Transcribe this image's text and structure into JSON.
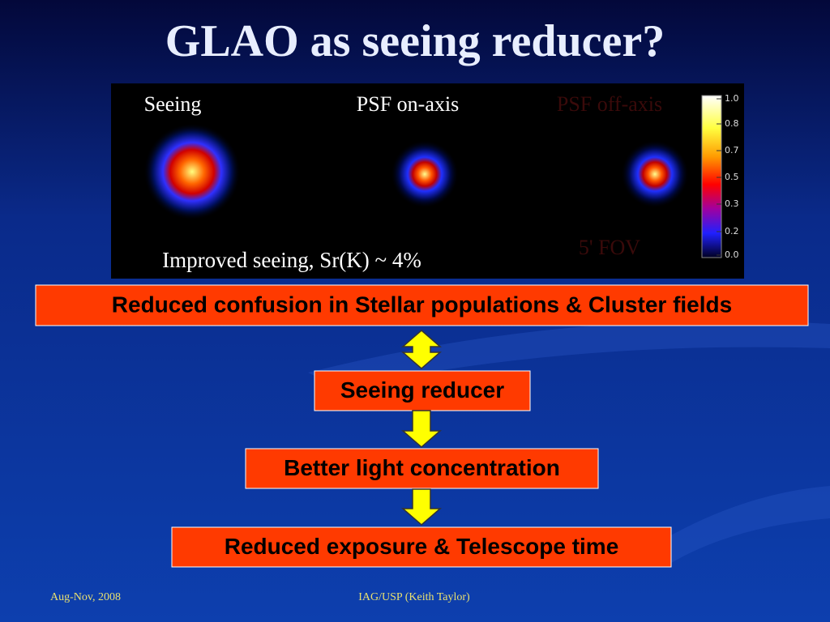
{
  "header": {
    "title": "GLAO as seeing reducer?"
  },
  "image_panel": {
    "labels": [
      "Seeing",
      "PSF on-axis",
      "PSF off-axis"
    ],
    "caption": "Improved seeing, Sr(K) ~ 4%",
    "fov_label": "5' FOV",
    "colorbar_ticks": [
      "1.0",
      "0.8",
      "0.7",
      "0.5",
      "0.3",
      "0.2",
      "0.0"
    ]
  },
  "flow": {
    "boxes": [
      "Reduced confusion in Stellar populations & Cluster fields",
      "Seeing reducer",
      "Better light concentration",
      "Reduced exposure & Telescope time"
    ]
  },
  "footer": {
    "left": "Aug-Nov, 2008",
    "center": "IAG/USP (Keith Taylor)"
  }
}
